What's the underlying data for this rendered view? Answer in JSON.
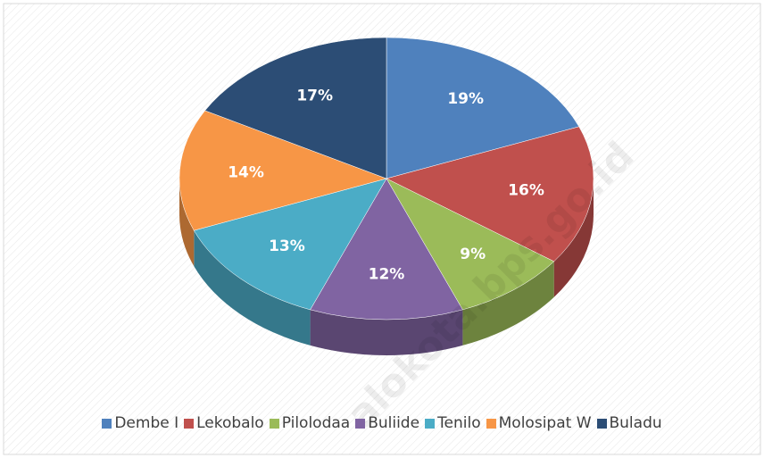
{
  "chart_data": {
    "type": "pie",
    "categories": [
      "Dembe I",
      "Lekobalo",
      "Pilolodaa",
      "Buliide",
      "Tenilo",
      "Molosipat W",
      "Buladu"
    ],
    "values": [
      19,
      16,
      9,
      12,
      13,
      14,
      17
    ],
    "value_labels": [
      "19%",
      "16%",
      "9%",
      "12%",
      "13%",
      "14%",
      "17%"
    ],
    "colors": [
      "#4f81bd",
      "#c0504d",
      "#9bbb59",
      "#8064a2",
      "#4bacc6",
      "#f79646",
      "#2c4d75"
    ],
    "legend": "bottom",
    "watermark": "alokota.bps.go.id"
  }
}
